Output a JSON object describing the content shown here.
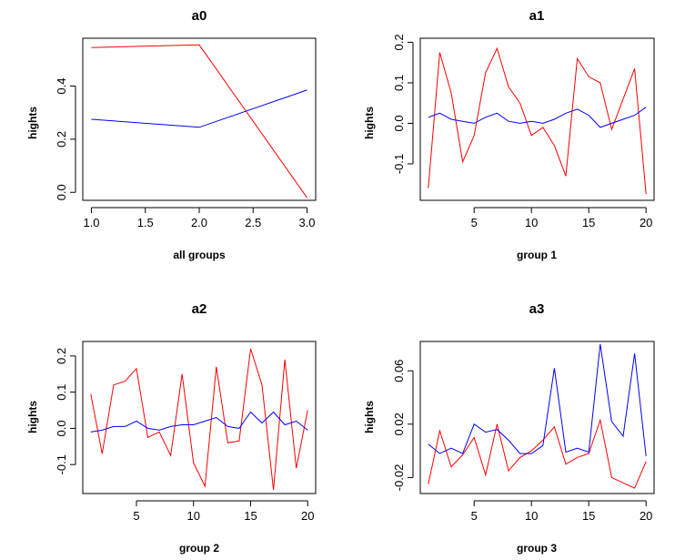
{
  "chart_data": [
    {
      "type": "line",
      "title": "a0",
      "xlabel": "all groups",
      "ylabel": "hights",
      "x": [
        1,
        2,
        3
      ],
      "xlim": [
        0.92,
        3.08
      ],
      "ylim": [
        -0.03,
        0.58
      ],
      "xticks": [
        1.0,
        1.5,
        2.0,
        2.5,
        3.0
      ],
      "xtick_labels": [
        "1.0",
        "1.5",
        "2.0",
        "2.5",
        "3.0"
      ],
      "yticks": [
        0.0,
        0.2,
        0.4
      ],
      "ytick_labels": [
        "0.0",
        "0.2",
        "0.4"
      ],
      "series": [
        {
          "name": "red",
          "color": "#ff0000",
          "values": [
            0.545,
            0.555,
            -0.02
          ]
        },
        {
          "name": "blue",
          "color": "#0000ff",
          "values": [
            0.275,
            0.245,
            0.385
          ]
        }
      ]
    },
    {
      "type": "line",
      "title": "a1",
      "xlabel": "group 1",
      "ylabel": "hights",
      "x": [
        1,
        2,
        3,
        4,
        5,
        6,
        7,
        8,
        9,
        10,
        11,
        12,
        13,
        14,
        15,
        16,
        17,
        18,
        19,
        20
      ],
      "xlim": [
        0.3,
        20.7
      ],
      "ylim": [
        -0.19,
        0.21
      ],
      "xticks": [
        5,
        10,
        15,
        20
      ],
      "xtick_labels": [
        "5",
        "10",
        "15",
        "20"
      ],
      "yticks": [
        -0.1,
        0.0,
        0.1,
        0.2
      ],
      "ytick_labels": [
        "-0.1",
        "0.0",
        "0.1",
        "0.2"
      ],
      "series": [
        {
          "name": "red",
          "color": "#ff0000",
          "values": [
            -0.16,
            0.175,
            0.075,
            -0.095,
            -0.03,
            0.125,
            0.185,
            0.09,
            0.05,
            -0.03,
            -0.01,
            -0.055,
            -0.13,
            0.16,
            0.115,
            0.1,
            -0.015,
            0.06,
            0.135,
            -0.175
          ]
        },
        {
          "name": "blue",
          "color": "#0000ff",
          "values": [
            0.015,
            0.025,
            0.01,
            0.005,
            0.0,
            0.015,
            0.025,
            0.005,
            0.0,
            0.005,
            0.0,
            0.01,
            0.025,
            0.035,
            0.02,
            -0.01,
            0.0,
            0.01,
            0.02,
            0.04
          ]
        }
      ]
    },
    {
      "type": "line",
      "title": "a2",
      "xlabel": "group 2",
      "ylabel": "hights",
      "x": [
        1,
        2,
        3,
        4,
        5,
        6,
        7,
        8,
        9,
        10,
        11,
        12,
        13,
        14,
        15,
        16,
        17,
        18,
        19,
        20
      ],
      "xlim": [
        0.3,
        20.7
      ],
      "ylim": [
        -0.18,
        0.24
      ],
      "xticks": [
        5,
        10,
        15,
        20
      ],
      "xtick_labels": [
        "5",
        "10",
        "15",
        "20"
      ],
      "yticks": [
        -0.1,
        0.0,
        0.1,
        0.2
      ],
      "ytick_labels": [
        "-0.1",
        "0.0",
        "0.1",
        "0.2"
      ],
      "series": [
        {
          "name": "red",
          "color": "#ff0000",
          "values": [
            0.095,
            -0.07,
            0.12,
            0.13,
            0.165,
            -0.025,
            -0.01,
            -0.075,
            0.15,
            -0.095,
            -0.16,
            0.17,
            -0.04,
            -0.035,
            0.22,
            0.12,
            -0.17,
            0.19,
            -0.11,
            0.05
          ]
        },
        {
          "name": "blue",
          "color": "#0000ff",
          "values": [
            -0.01,
            -0.005,
            0.005,
            0.005,
            0.02,
            0.0,
            -0.005,
            0.005,
            0.01,
            0.01,
            0.02,
            0.03,
            0.005,
            0.0,
            0.045,
            0.015,
            0.045,
            0.01,
            0.02,
            -0.005
          ]
        }
      ]
    },
    {
      "type": "line",
      "title": "a3",
      "xlabel": "group 3",
      "ylabel": "hights",
      "x": [
        1,
        2,
        3,
        4,
        5,
        6,
        7,
        8,
        9,
        10,
        11,
        12,
        13,
        14,
        15,
        16,
        17,
        18,
        19,
        20
      ],
      "xlim": [
        0.3,
        20.7
      ],
      "ylim": [
        -0.032,
        0.082
      ],
      "xticks": [
        5,
        10,
        15,
        20
      ],
      "xtick_labels": [
        "5",
        "10",
        "15",
        "20"
      ],
      "yticks": [
        -0.02,
        0.02,
        0.06
      ],
      "ytick_labels": [
        "-0.02",
        "0.02",
        "0.06"
      ],
      "series": [
        {
          "name": "red",
          "color": "#ff0000",
          "values": [
            -0.025,
            0.015,
            -0.012,
            -0.003,
            0.01,
            -0.018,
            0.02,
            -0.015,
            -0.005,
            0.0,
            0.008,
            0.018,
            -0.01,
            -0.005,
            -0.002,
            0.023,
            -0.02,
            -0.024,
            -0.028,
            -0.008
          ]
        },
        {
          "name": "blue",
          "color": "#0000ff",
          "values": [
            0.005,
            -0.002,
            0.002,
            -0.002,
            0.02,
            0.014,
            0.016,
            0.008,
            -0.002,
            -0.002,
            0.004,
            0.062,
            -0.001,
            0.002,
            -0.001,
            0.08,
            0.022,
            0.011,
            0.073,
            -0.004
          ]
        }
      ]
    }
  ]
}
